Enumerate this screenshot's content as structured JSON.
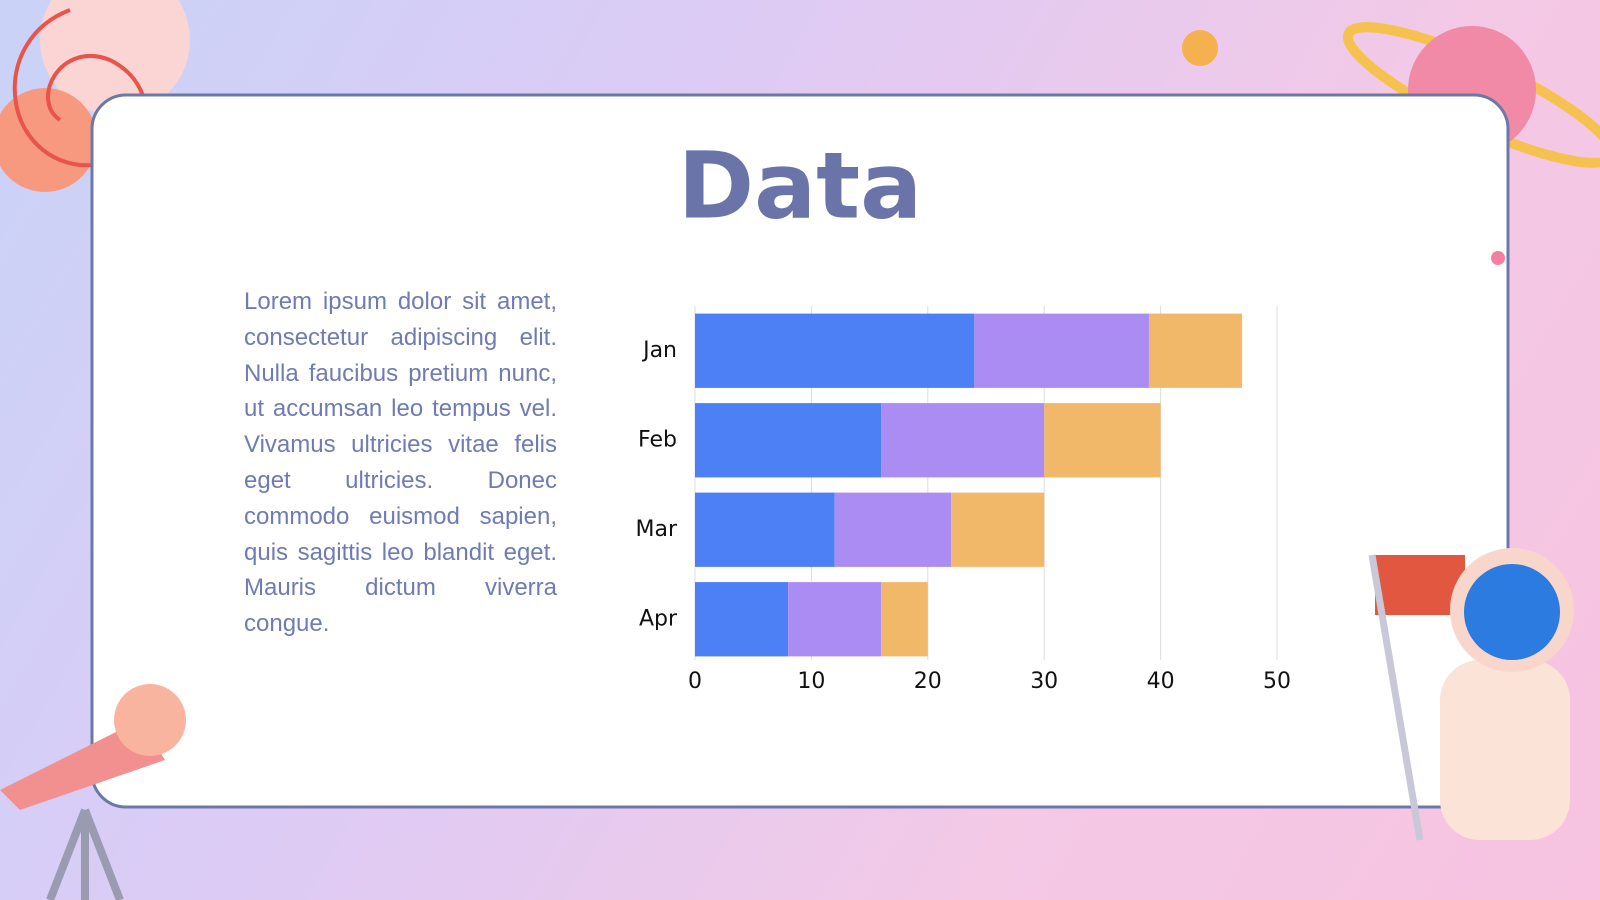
{
  "slide": {
    "title": "Data",
    "body": "Lorem ipsum dolor sit amet, consectetur adipiscing elit. Nulla faucibus pretium nunc, ut accumsan leo tempus vel. Vivamus ultricies vitae felis eget ultricies. Donec commodo euismod sapien, quis sagittis leo blandit eget. Mauris dictum viverra congue."
  },
  "chart_data": {
    "type": "bar",
    "orientation": "horizontal",
    "stacked": true,
    "categories": [
      "Jan",
      "Feb",
      "Mar",
      "Apr"
    ],
    "series": [
      {
        "color": "#4d7ff5",
        "values": [
          24,
          16,
          12,
          8
        ]
      },
      {
        "color": "#ab8cf2",
        "values": [
          15,
          14,
          10,
          8
        ]
      },
      {
        "color": "#f2b86a",
        "values": [
          8,
          10,
          8,
          4
        ]
      }
    ],
    "xlim": [
      0,
      50
    ],
    "xticks": [
      0,
      10,
      20,
      30,
      40,
      50
    ],
    "grid": true
  }
}
